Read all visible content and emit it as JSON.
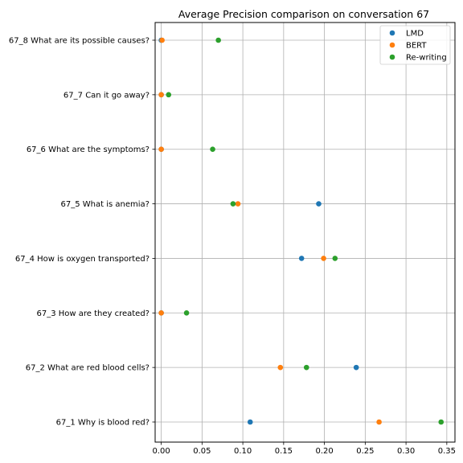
{
  "chart_data": {
    "type": "scatter",
    "title": "Average Precision comparison on conversation 67",
    "xlabel": "",
    "ylabel": "",
    "xlim": [
      -0.0075,
      0.36
    ],
    "xticks": [
      0.0,
      0.05,
      0.1,
      0.15,
      0.2,
      0.25,
      0.3,
      0.35
    ],
    "xtick_labels": [
      "0.00",
      "0.05",
      "0.10",
      "0.15",
      "0.20",
      "0.25",
      "0.30",
      "0.35"
    ],
    "categories": [
      "67_1 Why is blood red?",
      "67_2 What are red blood cells?",
      "67_3 How are they created?",
      "67_4 How is oxygen transported?",
      "67_5 What is anemia?",
      "67_6 What are the symptoms?",
      "67_7 Can it go away?",
      "67_8 What are its possible causes?"
    ],
    "grid": true,
    "legend_position": "top-right",
    "series": [
      {
        "name": "LMD",
        "color": "#1f77b4",
        "values": [
          0.109,
          0.239,
          0.0,
          0.172,
          0.193,
          0.0,
          0.0,
          0.0
        ]
      },
      {
        "name": "BERT",
        "color": "#ff7f0e",
        "values": [
          0.267,
          0.146,
          0.0,
          0.199,
          0.094,
          0.0,
          0.0,
          0.001
        ]
      },
      {
        "name": "Re-writing",
        "color": "#2ca02c",
        "values": [
          0.343,
          0.178,
          0.031,
          0.213,
          0.088,
          0.063,
          0.009,
          0.07
        ]
      }
    ]
  }
}
